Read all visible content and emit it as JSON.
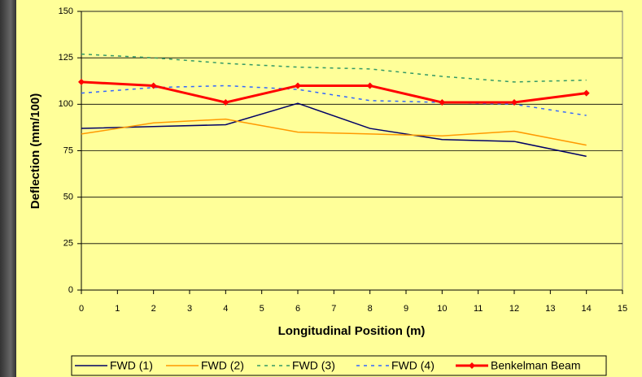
{
  "chart_data": {
    "type": "line",
    "xlabel": "Longitudinal Position (m)",
    "ylabel": "Deflection (mm/100)",
    "x": [
      0,
      2,
      4,
      6,
      8,
      10,
      12,
      14
    ],
    "series": [
      {
        "name": "FWD (1)",
        "color": "#000066",
        "dash": "solid",
        "values": [
          87,
          88,
          89,
          100.5,
          87,
          81,
          80,
          72
        ]
      },
      {
        "name": "FWD (2)",
        "color": "#FF9900",
        "dash": "solid",
        "values": [
          84,
          90,
          92,
          85,
          84,
          83,
          85.5,
          78
        ]
      },
      {
        "name": "FWD (3)",
        "color": "#339966",
        "dash": "dashed",
        "values": [
          127,
          125,
          122,
          120,
          119,
          115,
          112,
          113
        ]
      },
      {
        "name": "FWD (4)",
        "color": "#3366FF",
        "dash": "dashed",
        "values": [
          106,
          109,
          110,
          108,
          102,
          101,
          100,
          94
        ]
      },
      {
        "name": "Benkelman Beam",
        "color": "#FF0000",
        "dash": "solid",
        "marker": "diamond",
        "values": [
          112,
          110,
          101,
          110,
          110,
          101,
          101,
          106
        ]
      }
    ],
    "xlim": [
      0,
      15
    ],
    "xticks": [
      0,
      1,
      2,
      3,
      4,
      5,
      6,
      7,
      8,
      9,
      10,
      11,
      12,
      13,
      14,
      15
    ],
    "ylim": [
      0,
      150
    ],
    "yticks": [
      0,
      25,
      50,
      75,
      100,
      125,
      150
    ],
    "grid": true,
    "legend": "bottom"
  }
}
